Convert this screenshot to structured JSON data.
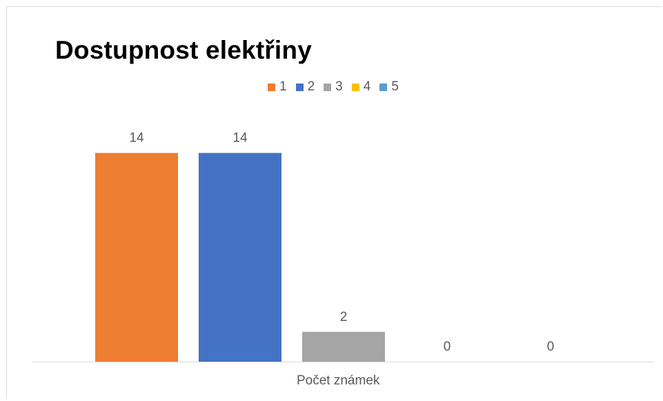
{
  "chart_data": {
    "type": "bar",
    "title": "Dostupnost elektřiny",
    "xlabel": "Počet známek",
    "ylabel": "",
    "categories": [
      "Počet známek"
    ],
    "series": [
      {
        "name": "1",
        "values": [
          14
        ],
        "color": "#ED7D31"
      },
      {
        "name": "2",
        "values": [
          14
        ],
        "color": "#4472C4"
      },
      {
        "name": "3",
        "values": [
          2
        ],
        "color": "#A5A5A5"
      },
      {
        "name": "4",
        "values": [
          0
        ],
        "color": "#FFC000"
      },
      {
        "name": "5",
        "values": [
          0
        ],
        "color": "#5B9BD5"
      }
    ],
    "ylim": [
      0,
      16
    ],
    "grid": false,
    "legend_position": "top",
    "data_labels": true
  }
}
